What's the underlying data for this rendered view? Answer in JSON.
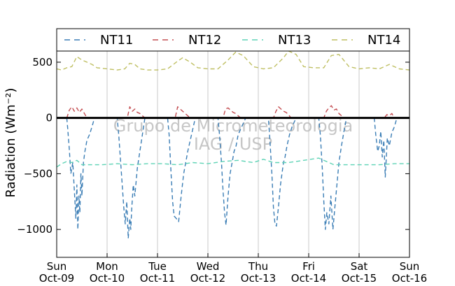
{
  "chart_data": {
    "type": "line",
    "ylabel": "Radiation (Wm⁻²)",
    "xlabel": "",
    "ylim": [
      -1250,
      600
    ],
    "yticks": [
      500,
      0,
      -500,
      -1000
    ],
    "ytick_labels": [
      "500",
      "0",
      "−500",
      "−1000"
    ],
    "xlim_days": [
      0,
      7
    ],
    "xtick_labels": [
      {
        "day": "Sun",
        "date": "Oct-09"
      },
      {
        "day": "Mon",
        "date": "Oct-10"
      },
      {
        "day": "Tue",
        "date": "Oct-11"
      },
      {
        "day": "Wed",
        "date": "Oct-12"
      },
      {
        "day": "Thu",
        "date": "Oct-13"
      },
      {
        "day": "Fri",
        "date": "Oct-14"
      },
      {
        "day": "Sat",
        "date": "Oct-15"
      },
      {
        "day": "Sun",
        "date": "Oct-16"
      }
    ],
    "grid": "vertical",
    "legend_position": "top",
    "zero_line": true,
    "series": [
      {
        "name": "NT11",
        "color": "#3a7db5",
        "x": [
          0.2,
          0.22,
          0.25,
          0.28,
          0.32,
          0.35,
          0.38,
          0.4,
          0.42,
          0.44,
          0.46,
          0.48,
          0.5,
          0.53,
          0.56,
          0.6,
          0.65,
          0.7,
          0.75,
          1.2,
          1.23,
          1.27,
          1.3,
          1.33,
          1.36,
          1.39,
          1.42,
          1.45,
          1.47,
          1.49,
          1.52,
          1.55,
          1.6,
          1.65,
          1.7,
          1.75,
          2.2,
          2.23,
          2.27,
          2.3,
          2.33,
          2.37,
          2.42,
          2.47,
          2.52,
          2.56,
          2.6,
          2.65,
          2.7,
          2.75,
          3.2,
          3.23,
          3.27,
          3.3,
          3.33,
          3.36,
          3.4,
          3.44,
          3.48,
          3.52,
          3.56,
          3.6,
          3.65,
          3.7,
          3.75,
          4.2,
          4.23,
          4.27,
          4.3,
          4.33,
          4.36,
          4.4,
          4.44,
          4.47,
          4.5,
          4.53,
          4.57,
          4.62,
          4.67,
          4.72,
          4.75,
          5.2,
          5.23,
          5.27,
          5.3,
          5.33,
          5.36,
          5.4,
          5.44,
          5.48,
          5.52,
          5.56,
          5.6,
          5.65,
          5.7,
          5.75,
          6.3,
          6.33,
          6.37,
          6.4,
          6.43,
          6.46,
          6.49,
          6.52,
          6.56,
          6.6,
          6.65,
          6.7,
          6.75
        ],
        "y": [
          0,
          -100,
          -280,
          -500,
          -400,
          -650,
          -900,
          -600,
          -1000,
          -700,
          -850,
          -500,
          -700,
          -400,
          -300,
          -200,
          -150,
          -80,
          0,
          0,
          -150,
          -400,
          -600,
          -800,
          -950,
          -750,
          -1080,
          -900,
          -1000,
          -800,
          -600,
          -700,
          -450,
          -300,
          -150,
          0,
          0,
          -150,
          -500,
          -750,
          -880,
          -900,
          -930,
          -700,
          -500,
          -400,
          -300,
          -200,
          -100,
          0,
          0,
          -150,
          -400,
          -650,
          -850,
          -960,
          -700,
          -500,
          -400,
          -300,
          -250,
          -150,
          -100,
          -50,
          0,
          0,
          -200,
          -500,
          -800,
          -950,
          -970,
          -800,
          -600,
          -500,
          -400,
          -350,
          -250,
          -150,
          -80,
          -30,
          0,
          0,
          -150,
          -450,
          -750,
          -1000,
          -850,
          -950,
          -700,
          -1000,
          -800,
          -600,
          -400,
          -250,
          -120,
          0,
          0,
          -150,
          -300,
          -250,
          -120,
          -350,
          -200,
          -530,
          -180,
          -250,
          -130,
          -80,
          0
        ]
      },
      {
        "name": "NT12",
        "color": "#c44e52",
        "x": [
          0.2,
          0.25,
          0.3,
          0.35,
          0.4,
          0.45,
          0.5,
          0.55,
          0.6,
          1.4,
          1.45,
          1.5,
          1.55,
          1.6,
          1.65,
          1.7,
          1.75,
          2.35,
          2.4,
          2.45,
          2.5,
          2.55,
          2.6,
          2.65,
          3.3,
          3.35,
          3.4,
          3.45,
          3.5,
          3.55,
          3.6,
          3.65,
          4.3,
          4.35,
          4.4,
          4.45,
          4.5,
          4.55,
          4.6,
          4.65,
          5.3,
          5.35,
          5.4,
          5.45,
          5.5,
          5.55,
          5.6,
          5.65,
          5.7,
          6.5,
          6.55,
          6.6,
          6.65,
          6.7
        ],
        "y": [
          0,
          70,
          100,
          60,
          90,
          50,
          80,
          40,
          0,
          0,
          100,
          60,
          80,
          50,
          40,
          20,
          0,
          0,
          100,
          80,
          60,
          40,
          20,
          0,
          0,
          80,
          90,
          70,
          50,
          40,
          20,
          0,
          0,
          60,
          100,
          80,
          60,
          50,
          30,
          0,
          0,
          60,
          90,
          110,
          70,
          80,
          40,
          20,
          0,
          0,
          30,
          20,
          40,
          0
        ]
      },
      {
        "name": "NT13",
        "color": "#5ed3b5",
        "x": [
          0,
          0.1,
          0.2,
          0.3,
          0.4,
          0.5,
          0.7,
          0.9,
          1.2,
          1.5,
          1.8,
          2.1,
          2.4,
          2.7,
          3.0,
          3.3,
          3.6,
          3.9,
          4.1,
          4.3,
          4.6,
          4.9,
          5.2,
          5.5,
          5.8,
          6.1,
          6.4,
          6.7,
          7.0
        ],
        "y": [
          -440,
          -410,
          -390,
          -400,
          -380,
          -420,
          -420,
          -420,
          -410,
          -420,
          -410,
          -410,
          -420,
          -400,
          -410,
          -390,
          -380,
          -400,
          -370,
          -400,
          -400,
          -380,
          -360,
          -420,
          -420,
          -420,
          -420,
          -410,
          -410
        ]
      },
      {
        "name": "NT14",
        "color": "#bfbf62",
        "x": [
          0,
          0.1,
          0.2,
          0.3,
          0.4,
          0.5,
          0.6,
          0.7,
          0.8,
          1.0,
          1.2,
          1.35,
          1.45,
          1.55,
          1.65,
          1.8,
          2.0,
          2.2,
          2.4,
          2.5,
          2.65,
          2.8,
          3.0,
          3.2,
          3.4,
          3.55,
          3.7,
          3.9,
          4.1,
          4.3,
          4.5,
          4.6,
          4.75,
          4.9,
          5.1,
          5.3,
          5.45,
          5.6,
          5.8,
          6.0,
          6.2,
          6.4,
          6.6,
          6.8,
          7.0
        ],
        "y": [
          440,
          430,
          450,
          460,
          550,
          520,
          500,
          480,
          450,
          440,
          430,
          440,
          490,
          480,
          440,
          430,
          430,
          440,
          510,
          540,
          500,
          450,
          440,
          440,
          520,
          590,
          560,
          460,
          440,
          450,
          540,
          600,
          570,
          460,
          450,
          450,
          560,
          570,
          460,
          440,
          450,
          440,
          480,
          440,
          430
        ]
      }
    ],
    "watermark": [
      "Grupo de Micrometeorologia",
      "IAG / USP"
    ]
  }
}
